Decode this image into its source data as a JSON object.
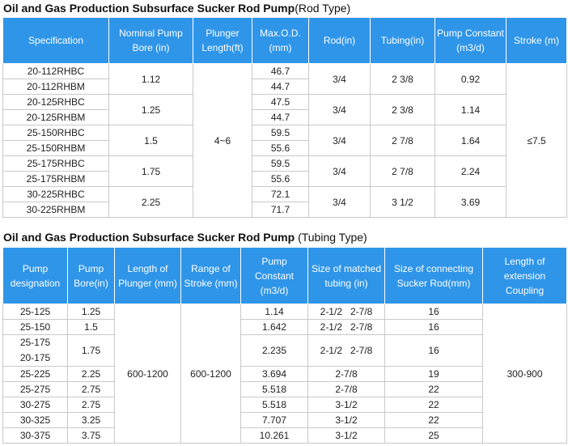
{
  "rod_section": {
    "title_main": "Oil and Gas Production Subsurface Sucker Rod Pump",
    "title_sub": "(Rod Type)",
    "headers": [
      "Specification",
      "Nominal Pump Bore  (in)",
      "Plunger Length(ft)",
      "Max.O.D. (mm)",
      "Rod(in)",
      "Tubing(in)",
      "Pump Constant (m3/d)",
      "Stroke (m)"
    ],
    "plunger_length": "4~6",
    "stroke": "≤7.5",
    "groups": [
      {
        "specs": [
          "20-112RHBC",
          "20-112RHBM"
        ],
        "bore": "1.12",
        "od": [
          "46.7",
          "44.7"
        ],
        "rod": "3/4",
        "tubing": "2 3/8",
        "constant": "0.92"
      },
      {
        "specs": [
          "20-125RHBC",
          "20-125RHBM"
        ],
        "bore": "1.25",
        "od": [
          "47.5",
          "44.7"
        ],
        "rod": "3/4",
        "tubing": "2 3/8",
        "constant": "1.14"
      },
      {
        "specs": [
          "25-150RHBC",
          "25-150RHBM"
        ],
        "bore": "1.5",
        "od": [
          "59.5",
          "55.6"
        ],
        "rod": "3/4",
        "tubing": "2 7/8",
        "constant": "1.64"
      },
      {
        "specs": [
          "25-175RHBC",
          "25-175RHBM"
        ],
        "bore": "1.75",
        "od": [
          "59.5",
          "55.6"
        ],
        "rod": "3/4",
        "tubing": "2 7/8",
        "constant": "2.24"
      },
      {
        "specs": [
          "30-225RHBC",
          "30-225RHBM"
        ],
        "bore": "2.25",
        "od": [
          "72.1",
          "71.7"
        ],
        "rod": "3/4",
        "tubing": "3 1/2",
        "constant": "3.69"
      }
    ]
  },
  "tubing_section": {
    "title_main": "Oil and Gas Production Subsurface Sucker Rod Pump",
    "title_sub": " (Tubing Type)",
    "headers": [
      "Pump designation",
      "Pump Bore(in)",
      "Length of Plunger (mm)",
      "Range of Stroke (mm)",
      "Pump Constant (m3/d)",
      "Size of matched tubing (in)",
      "Size of connecting Sucker Rod(mm)",
      "Length of extension Coupling"
    ],
    "plunger_length": "600-1200",
    "stroke_range": "600-1200",
    "coupling": "300-900",
    "rows": [
      {
        "designation": "25-125",
        "bore": "1.25",
        "constant": "1.14",
        "tubing": "2-1/2   2-7/8",
        "rod": "16"
      },
      {
        "designation": "25-150",
        "bore": "1.5",
        "constant": "1.642",
        "tubing": "2-1/2   2-7/8",
        "rod": "16"
      },
      {
        "designation": "25-175",
        "designation2": "20-175",
        "bore": "1.75",
        "constant": "2.235",
        "tubing": "2-1/2   2-7/8",
        "rod": "16"
      },
      {
        "designation": "25-225",
        "bore": "2.25",
        "constant": "3.694",
        "tubing": "2-7/8",
        "rod": "19"
      },
      {
        "designation": "25-275",
        "bore": "2.75",
        "constant": "5.518",
        "tubing": "2-7/8",
        "rod": "22"
      },
      {
        "designation": "30-275",
        "bore": "2.75",
        "constant": "5.518",
        "tubing": "3-1/2",
        "rod": "22"
      },
      {
        "designation": "30-325",
        "bore": "3.25",
        "constant": "7.707",
        "tubing": "3-1/2",
        "rod": "22"
      },
      {
        "designation": "30-375",
        "bore": "3.75",
        "constant": "10.261",
        "tubing": "3-1/2",
        "rod": "25"
      }
    ]
  }
}
